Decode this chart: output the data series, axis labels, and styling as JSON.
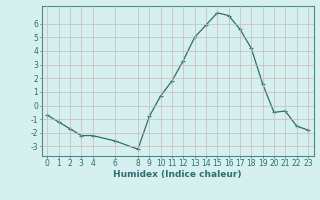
{
  "x": [
    0,
    1,
    2,
    3,
    4,
    6,
    8,
    9,
    10,
    11,
    12,
    13,
    14,
    15,
    16,
    17,
    18,
    19,
    20,
    21,
    22,
    23
  ],
  "y": [
    -0.7,
    -1.2,
    -1.7,
    -2.2,
    -2.2,
    -2.6,
    -3.2,
    -0.8,
    0.7,
    1.8,
    3.3,
    5.0,
    5.9,
    6.8,
    6.6,
    5.6,
    4.2,
    1.6,
    -0.5,
    -0.4,
    -1.5,
    -1.8
  ],
  "line_color": "#2d6e6e",
  "marker": "+",
  "marker_size": 3,
  "marker_linewidth": 0.8,
  "linewidth": 0.9,
  "xlabel": "Humidex (Indice chaleur)",
  "xlim": [
    -0.5,
    23.5
  ],
  "ylim": [
    -3.7,
    7.3
  ],
  "yticks": [
    -3,
    -2,
    -1,
    0,
    1,
    2,
    3,
    4,
    5,
    6
  ],
  "xticks": [
    0,
    1,
    2,
    3,
    4,
    6,
    8,
    9,
    10,
    11,
    12,
    13,
    14,
    15,
    16,
    17,
    18,
    19,
    20,
    21,
    22,
    23
  ],
  "bg_color": "#d6f0f0",
  "grid_color": "#c8b8b8",
  "spine_color": "#4a8a8a",
  "tick_color": "#2d6e6e",
  "label_color": "#2d6e6e",
  "tick_fontsize": 5.5,
  "xlabel_fontsize": 6.5,
  "xlabel_fontweight": "bold"
}
